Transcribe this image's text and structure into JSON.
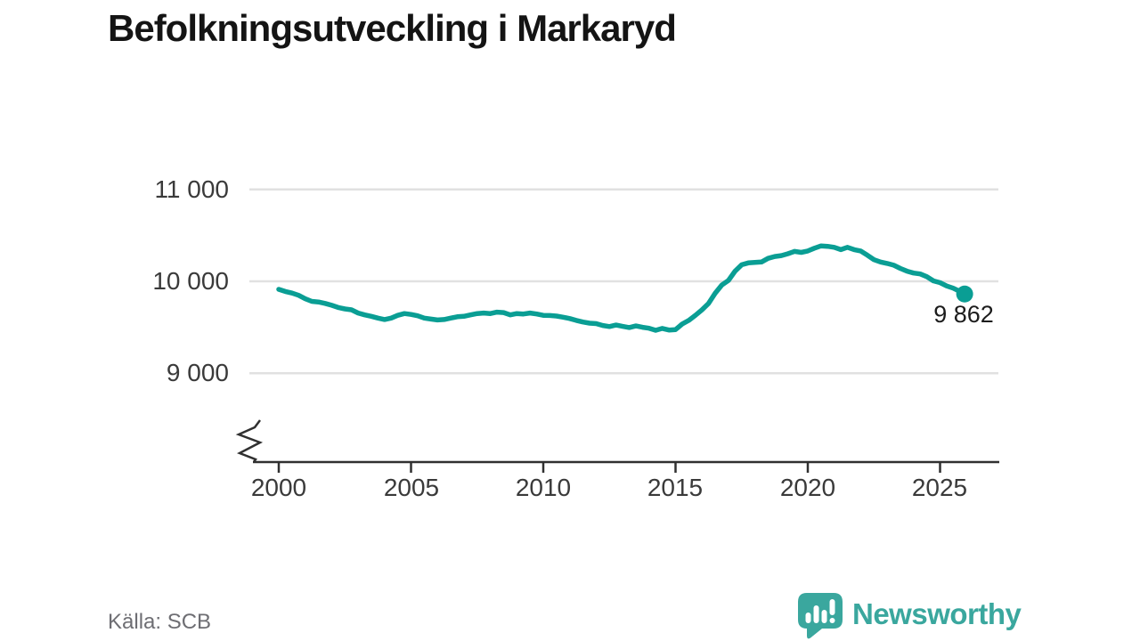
{
  "header": {
    "title": "Befolkningsutveckling i Markaryd"
  },
  "footer": {
    "source": "Källa: SCB",
    "brand_name": "Newsworthy"
  },
  "colors": {
    "line": "#0a9e94",
    "grid": "#e1e1e1",
    "axis": "#303030",
    "tick_text": "#3a3a3a",
    "title_text": "#141414",
    "source_text": "#6e6e73",
    "brand": "#3aa79e",
    "annotation": "#1c1c1c"
  },
  "chart_data": {
    "type": "line",
    "title": "Befolkningsutveckling i Markaryd",
    "xlabel": "",
    "ylabel": "",
    "grid": "horizontal",
    "axis_break": true,
    "legend": "none",
    "x_ticks": [
      "2000",
      "2005",
      "2010",
      "2015",
      "2020",
      "2025"
    ],
    "x_tick_years": [
      2000,
      2005,
      2010,
      2015,
      2020,
      2025
    ],
    "y_ticks": [
      {
        "value": 11000,
        "label": "11 000"
      },
      {
        "value": 10000,
        "label": "10 000"
      },
      {
        "value": 9000,
        "label": "9 000"
      }
    ],
    "ylim_visible": [
      9000,
      11000
    ],
    "xlim": [
      2000,
      2026.3
    ],
    "series": [
      {
        "name": "Befolkning i Markaryd",
        "points": [
          [
            2000.0,
            9913
          ],
          [
            2000.25,
            9890
          ],
          [
            2000.5,
            9872
          ],
          [
            2000.75,
            9848
          ],
          [
            2001.0,
            9810
          ],
          [
            2001.25,
            9782
          ],
          [
            2001.5,
            9775
          ],
          [
            2001.75,
            9760
          ],
          [
            2002.0,
            9740
          ],
          [
            2002.25,
            9715
          ],
          [
            2002.5,
            9700
          ],
          [
            2002.75,
            9690
          ],
          [
            2003.0,
            9655
          ],
          [
            2003.25,
            9635
          ],
          [
            2003.5,
            9620
          ],
          [
            2003.75,
            9600
          ],
          [
            2004.0,
            9585
          ],
          [
            2004.25,
            9600
          ],
          [
            2004.5,
            9630
          ],
          [
            2004.75,
            9650
          ],
          [
            2005.0,
            9640
          ],
          [
            2005.25,
            9625
          ],
          [
            2005.5,
            9600
          ],
          [
            2005.75,
            9590
          ],
          [
            2006.0,
            9580
          ],
          [
            2006.25,
            9585
          ],
          [
            2006.5,
            9600
          ],
          [
            2006.75,
            9615
          ],
          [
            2007.0,
            9620
          ],
          [
            2007.25,
            9635
          ],
          [
            2007.5,
            9650
          ],
          [
            2007.75,
            9655
          ],
          [
            2008.0,
            9650
          ],
          [
            2008.25,
            9665
          ],
          [
            2008.5,
            9660
          ],
          [
            2008.75,
            9635
          ],
          [
            2009.0,
            9650
          ],
          [
            2009.25,
            9645
          ],
          [
            2009.5,
            9655
          ],
          [
            2009.75,
            9645
          ],
          [
            2010.0,
            9630
          ],
          [
            2010.25,
            9628
          ],
          [
            2010.5,
            9622
          ],
          [
            2010.75,
            9610
          ],
          [
            2011.0,
            9595
          ],
          [
            2011.25,
            9575
          ],
          [
            2011.5,
            9558
          ],
          [
            2011.75,
            9545
          ],
          [
            2012.0,
            9540
          ],
          [
            2012.25,
            9520
          ],
          [
            2012.5,
            9508
          ],
          [
            2012.75,
            9525
          ],
          [
            2013.0,
            9510
          ],
          [
            2013.25,
            9498
          ],
          [
            2013.5,
            9515
          ],
          [
            2013.75,
            9500
          ],
          [
            2014.0,
            9490
          ],
          [
            2014.25,
            9468
          ],
          [
            2014.5,
            9488
          ],
          [
            2014.75,
            9470
          ],
          [
            2015.0,
            9475
          ],
          [
            2015.25,
            9535
          ],
          [
            2015.5,
            9575
          ],
          [
            2015.75,
            9630
          ],
          [
            2016.0,
            9690
          ],
          [
            2016.25,
            9760
          ],
          [
            2016.5,
            9870
          ],
          [
            2016.75,
            9960
          ],
          [
            2017.0,
            10010
          ],
          [
            2017.25,
            10110
          ],
          [
            2017.5,
            10180
          ],
          [
            2017.75,
            10200
          ],
          [
            2018.0,
            10205
          ],
          [
            2018.25,
            10210
          ],
          [
            2018.5,
            10250
          ],
          [
            2018.75,
            10270
          ],
          [
            2019.0,
            10280
          ],
          [
            2019.25,
            10300
          ],
          [
            2019.5,
            10325
          ],
          [
            2019.75,
            10315
          ],
          [
            2020.0,
            10330
          ],
          [
            2020.25,
            10360
          ],
          [
            2020.5,
            10385
          ],
          [
            2020.75,
            10380
          ],
          [
            2021.0,
            10370
          ],
          [
            2021.25,
            10345
          ],
          [
            2021.5,
            10370
          ],
          [
            2021.75,
            10345
          ],
          [
            2022.0,
            10330
          ],
          [
            2022.25,
            10285
          ],
          [
            2022.5,
            10235
          ],
          [
            2022.75,
            10210
          ],
          [
            2023.0,
            10195
          ],
          [
            2023.25,
            10175
          ],
          [
            2023.5,
            10140
          ],
          [
            2023.75,
            10110
          ],
          [
            2024.0,
            10090
          ],
          [
            2024.25,
            10080
          ],
          [
            2024.5,
            10050
          ],
          [
            2024.75,
            10005
          ],
          [
            2025.0,
            9985
          ],
          [
            2025.25,
            9950
          ],
          [
            2025.5,
            9925
          ],
          [
            2025.75,
            9890
          ],
          [
            2025.93,
            9862
          ]
        ]
      }
    ],
    "last_point": {
      "year": 2025.93,
      "value": 9862,
      "label": "9 862"
    }
  }
}
